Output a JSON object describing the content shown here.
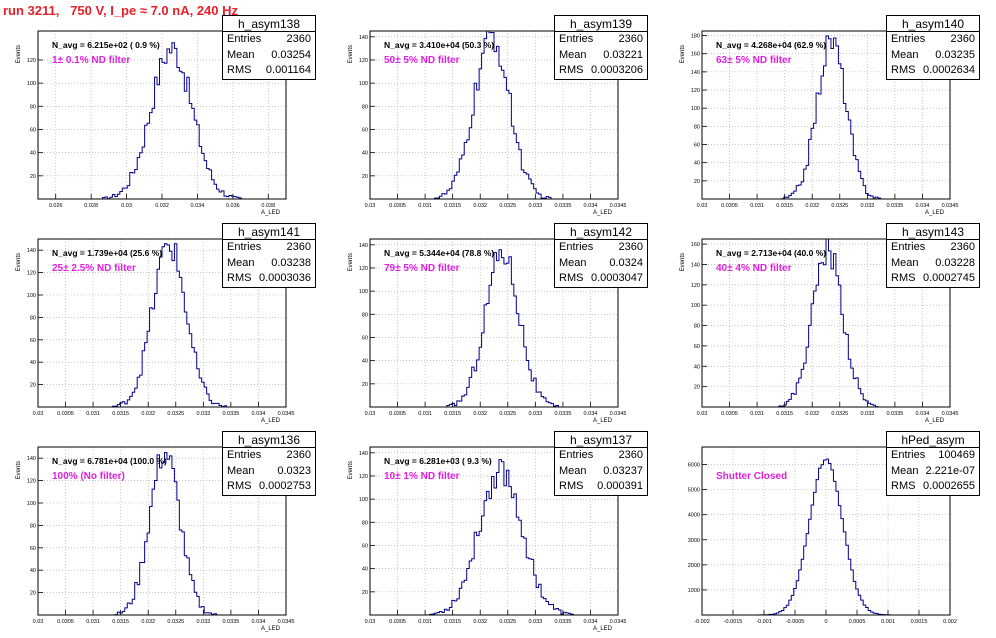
{
  "page_title": "run 3211,   750 V, I_pe ≈ 7.0 nA, 240 Hz",
  "colors": {
    "title": "#e8202a",
    "filter_label": "#e020e0",
    "hist": "#00008b",
    "grid": "#a8a8a8"
  },
  "chart_data": [
    {
      "type": "histogram",
      "name": "h_asym138",
      "navg": "N_avg = 6.215e+02 ( 0.9 %)",
      "filter_label": "1± 0.1% ND filter",
      "stats": {
        "entries": "2360",
        "mean": "0.03254",
        "rms": "0.001164"
      },
      "mean_value": 0.03254,
      "rms_value": 0.001164,
      "peak": 130,
      "entries_n": 2360,
      "xlim": [
        0.025,
        0.039
      ],
      "ylim": [
        0,
        145
      ],
      "xticks": [
        "0.026",
        "0.028",
        "0.03",
        "0.032",
        "0.034",
        "0.036",
        "0.038"
      ],
      "xtick_vals": [
        0.026,
        0.028,
        0.03,
        0.032,
        0.034,
        0.036,
        0.038
      ],
      "yticks": [
        "20",
        "40",
        "60",
        "80",
        "100",
        "120"
      ],
      "ytick_vals": [
        20,
        40,
        60,
        80,
        100,
        120
      ],
      "xlabel": "A_LED",
      "ylabel": "Events",
      "grid": true
    },
    {
      "type": "histogram",
      "name": "h_asym139",
      "navg": "N_avg = 3.410e+04 (50.3 %)",
      "filter_label": "50± 5% ND filter",
      "stats": {
        "entries": "2360",
        "mean": "0.03221",
        "rms": "0.0003206"
      },
      "mean_value": 0.03221,
      "rms_value": 0.0003206,
      "peak": 140,
      "entries_n": 2360,
      "xlim": [
        0.03,
        0.0345
      ],
      "ylim": [
        0,
        145
      ],
      "xticks": [
        "0.03",
        "0.0305",
        "0.031",
        "0.0315",
        "0.032",
        "0.0325",
        "0.033",
        "0.0335",
        "0.034",
        "0.0345"
      ],
      "xtick_vals": [
        0.03,
        0.0305,
        0.031,
        0.0315,
        0.032,
        0.0325,
        0.033,
        0.0335,
        0.034,
        0.0345
      ],
      "yticks": [
        "20",
        "40",
        "60",
        "80",
        "100",
        "120",
        "140"
      ],
      "ytick_vals": [
        20,
        40,
        60,
        80,
        100,
        120,
        140
      ],
      "xlabel": "A_LED",
      "ylabel": "Events",
      "grid": true
    },
    {
      "type": "histogram",
      "name": "h_asym140",
      "navg": "N_avg = 4.268e+04 (62.9 %)",
      "filter_label": "63± 5% ND filter",
      "stats": {
        "entries": "2360",
        "mean": "0.03235",
        "rms": "0.0002634"
      },
      "mean_value": 0.03235,
      "rms_value": 0.0002634,
      "peak": 175,
      "entries_n": 2360,
      "xlim": [
        0.03,
        0.0345
      ],
      "ylim": [
        0,
        185
      ],
      "xticks": [
        "0.03",
        "0.0305",
        "0.031",
        "0.0315",
        "0.032",
        "0.0325",
        "0.033",
        "0.0335",
        "0.034",
        "0.0345"
      ],
      "xtick_vals": [
        0.03,
        0.0305,
        0.031,
        0.0315,
        0.032,
        0.0325,
        0.033,
        0.0335,
        0.034,
        0.0345
      ],
      "yticks": [
        "20",
        "40",
        "60",
        "80",
        "100",
        "120",
        "140",
        "160",
        "180"
      ],
      "ytick_vals": [
        20,
        40,
        60,
        80,
        100,
        120,
        140,
        160,
        180
      ],
      "xlabel": "A_LED",
      "ylabel": "Events",
      "grid": true
    },
    {
      "type": "histogram",
      "name": "h_asym141",
      "navg": "N_avg = 1.739e+04 (25.6 %)",
      "filter_label": "25± 2.5% ND filter",
      "stats": {
        "entries": "2360",
        "mean": "0.03238",
        "rms": "0.0003036"
      },
      "mean_value": 0.03238,
      "rms_value": 0.0003036,
      "peak": 145,
      "entries_n": 2360,
      "xlim": [
        0.03,
        0.0345
      ],
      "ylim": [
        0,
        150
      ],
      "xticks": [
        "0.03",
        "0.0305",
        "0.031",
        "0.0315",
        "0.032",
        "0.0325",
        "0.033",
        "0.0335",
        "0.034",
        "0.0345"
      ],
      "xtick_vals": [
        0.03,
        0.0305,
        0.031,
        0.0315,
        0.032,
        0.0325,
        0.033,
        0.0335,
        0.034,
        0.0345
      ],
      "yticks": [
        "20",
        "40",
        "60",
        "80",
        "100",
        "120",
        "140"
      ],
      "ytick_vals": [
        20,
        40,
        60,
        80,
        100,
        120,
        140
      ],
      "xlabel": "A_LED",
      "ylabel": "Events",
      "grid": true
    },
    {
      "type": "histogram",
      "name": "h_asym142",
      "navg": "N_avg = 5.344e+04 (78.8 %)",
      "filter_label": "79± 5% ND filter",
      "stats": {
        "entries": "2360",
        "mean": "0.0324",
        "rms": "0.0003047"
      },
      "mean_value": 0.0324,
      "rms_value": 0.0003047,
      "peak": 135,
      "entries_n": 2360,
      "xlim": [
        0.03,
        0.0345
      ],
      "ylim": [
        0,
        145
      ],
      "xticks": [
        "0.03",
        "0.0305",
        "0.031",
        "0.0315",
        "0.032",
        "0.0325",
        "0.033",
        "0.0335",
        "0.034",
        "0.0345"
      ],
      "xtick_vals": [
        0.03,
        0.0305,
        0.031,
        0.0315,
        0.032,
        0.0325,
        0.033,
        0.0335,
        0.034,
        0.0345
      ],
      "yticks": [
        "20",
        "40",
        "60",
        "80",
        "100",
        "120",
        "140"
      ],
      "ytick_vals": [
        20,
        40,
        60,
        80,
        100,
        120,
        140
      ],
      "xlabel": "A_LED",
      "ylabel": "Events",
      "grid": true
    },
    {
      "type": "histogram",
      "name": "h_asym143",
      "navg": "N_avg = 2.713e+04 (40.0 %)",
      "filter_label": "40± 4% ND filter",
      "stats": {
        "entries": "2360",
        "mean": "0.03228",
        "rms": "0.0002745"
      },
      "mean_value": 0.03228,
      "rms_value": 0.0002745,
      "peak": 155,
      "entries_n": 2360,
      "xlim": [
        0.03,
        0.0345
      ],
      "ylim": [
        0,
        165
      ],
      "xticks": [
        "0.03",
        "0.0305",
        "0.031",
        "0.0315",
        "0.032",
        "0.0325",
        "0.033",
        "0.0335",
        "0.034",
        "0.0345"
      ],
      "xtick_vals": [
        0.03,
        0.0305,
        0.031,
        0.0315,
        0.032,
        0.0325,
        0.033,
        0.0335,
        0.034,
        0.0345
      ],
      "yticks": [
        "20",
        "40",
        "60",
        "80",
        "100",
        "120",
        "140",
        "160"
      ],
      "ytick_vals": [
        20,
        40,
        60,
        80,
        100,
        120,
        140,
        160
      ],
      "xlabel": "A_LED",
      "ylabel": "Events",
      "grid": true
    },
    {
      "type": "histogram",
      "name": "h_asym136",
      "navg": "N_avg = 6.781e+04 (100.0 %)",
      "filter_label": "100% (No filter)",
      "stats": {
        "entries": "2360",
        "mean": "0.0323",
        "rms": "0.0002753"
      },
      "mean_value": 0.0323,
      "rms_value": 0.0002753,
      "peak": 145,
      "entries_n": 2360,
      "xlim": [
        0.03,
        0.0345
      ],
      "ylim": [
        0,
        150
      ],
      "xticks": [
        "0.03",
        "0.0305",
        "0.031",
        "0.0315",
        "0.032",
        "0.0325",
        "0.033",
        "0.0335",
        "0.034",
        "0.0345"
      ],
      "xtick_vals": [
        0.03,
        0.0305,
        0.031,
        0.0315,
        0.032,
        0.0325,
        0.033,
        0.0335,
        0.034,
        0.0345
      ],
      "yticks": [
        "20",
        "40",
        "60",
        "80",
        "100",
        "120",
        "140"
      ],
      "ytick_vals": [
        20,
        40,
        60,
        80,
        100,
        120,
        140
      ],
      "xlabel": "A_LED",
      "ylabel": "Events",
      "grid": true
    },
    {
      "type": "histogram",
      "name": "h_asym137",
      "navg": "N_avg = 6.281e+03 ( 9.3 %)",
      "filter_label": "10± 1% ND filter",
      "stats": {
        "entries": "2360",
        "mean": "0.03237",
        "rms": "0.000391"
      },
      "mean_value": 0.03237,
      "rms_value": 0.000391,
      "peak": 125,
      "entries_n": 2360,
      "xlim": [
        0.03,
        0.0345
      ],
      "ylim": [
        0,
        145
      ],
      "xticks": [
        "0.03",
        "0.0305",
        "0.031",
        "0.0315",
        "0.032",
        "0.0325",
        "0.033",
        "0.0335",
        "0.034",
        "0.0345"
      ],
      "xtick_vals": [
        0.03,
        0.0305,
        0.031,
        0.0315,
        0.032,
        0.0325,
        0.033,
        0.0335,
        0.034,
        0.0345
      ],
      "yticks": [
        "20",
        "40",
        "60",
        "80",
        "100",
        "120",
        "140"
      ],
      "ytick_vals": [
        20,
        40,
        60,
        80,
        100,
        120,
        140
      ],
      "xlabel": "A_LED",
      "ylabel": "Events",
      "grid": true
    },
    {
      "type": "histogram",
      "name": "hPed_asym",
      "navg": "",
      "filter_label": "Shutter Closed",
      "stats": {
        "entries": "100469",
        "mean": "2.221e-07",
        "rms": "0.0002655"
      },
      "mean_value": 0.0,
      "rms_value": 0.0002655,
      "peak": 6200,
      "entries_n": 100469,
      "xlim": [
        -0.002,
        0.002
      ],
      "ylim": [
        0,
        6700
      ],
      "xticks": [
        "-0.002",
        "-0.0015",
        "-0.001",
        "-0.0005",
        "0",
        "0.0005",
        "0.001",
        "0.0015",
        "0.002"
      ],
      "xtick_vals": [
        -0.002,
        -0.0015,
        -0.001,
        -0.0005,
        0,
        0.0005,
        0.001,
        0.0015,
        0.002
      ],
      "yticks": [
        "1000",
        "2000",
        "3000",
        "4000",
        "5000",
        "6000"
      ],
      "ytick_vals": [
        1000,
        2000,
        3000,
        4000,
        5000,
        6000
      ],
      "xlabel": "",
      "ylabel": "",
      "grid": true
    }
  ]
}
